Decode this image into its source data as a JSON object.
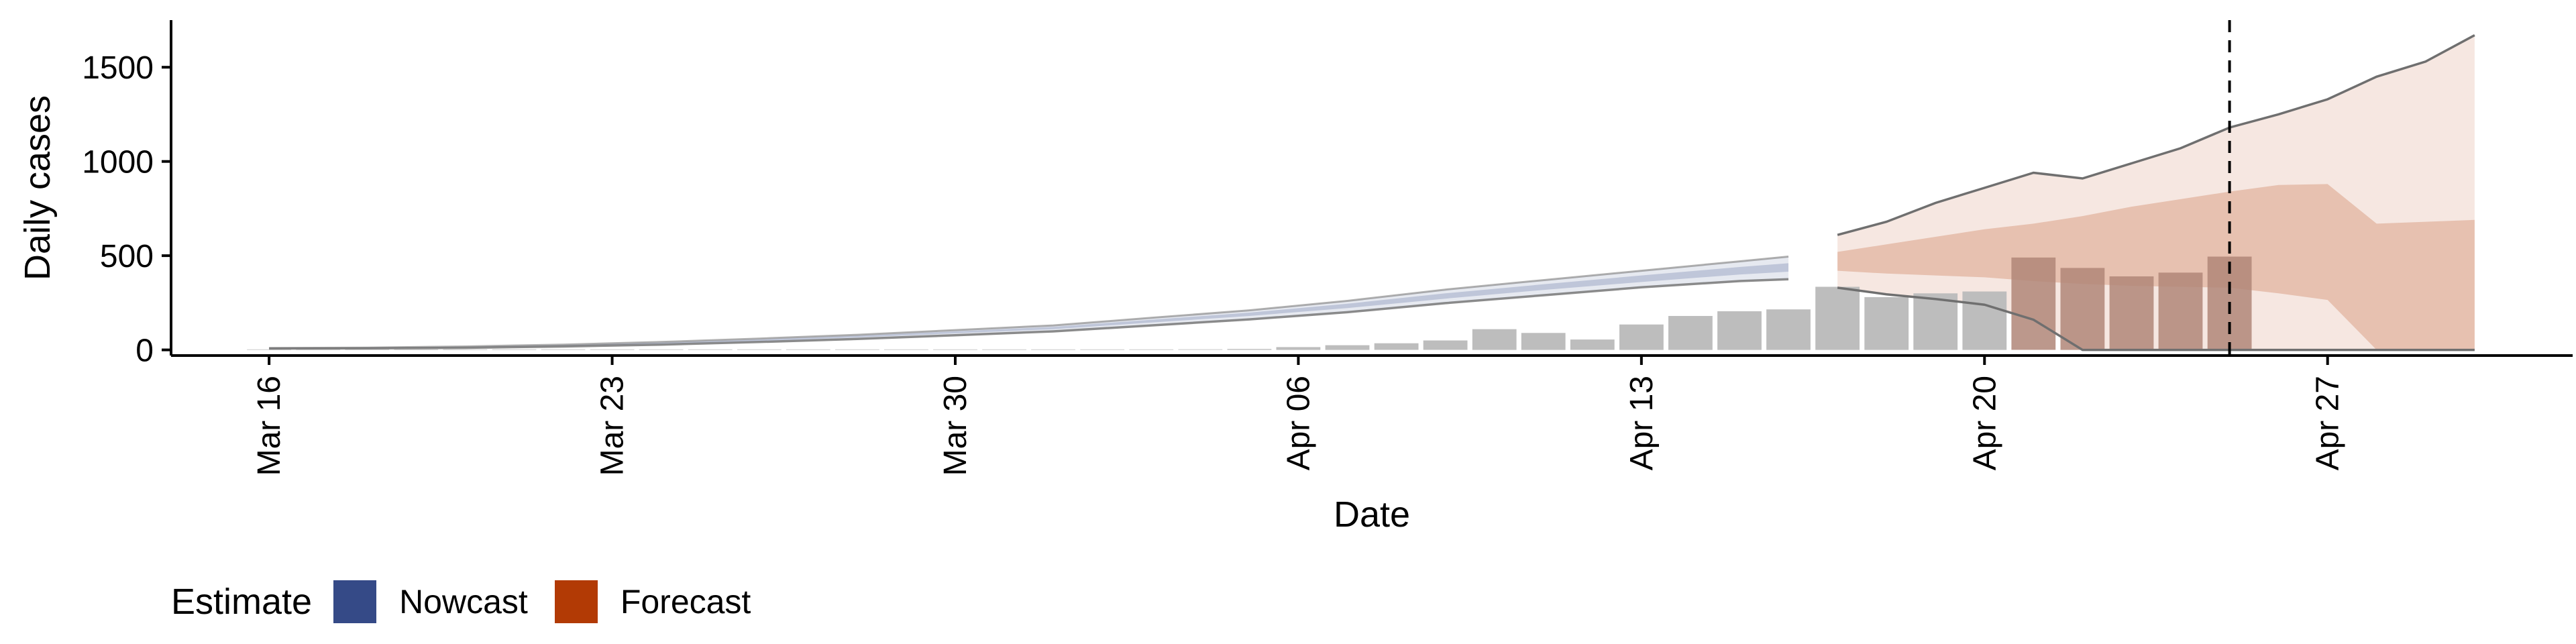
{
  "chart_data": {
    "type": "bar",
    "xlabel": "Date",
    "ylabel": "Daily cases",
    "x_axis": {
      "start": "2020-03-14",
      "end": "2020-05-02",
      "tick_dates": [
        "2020-03-16",
        "2020-03-23",
        "2020-03-30",
        "2020-04-06",
        "2020-04-13",
        "2020-04-20",
        "2020-04-27"
      ],
      "tick_labels": [
        "Mar 16",
        "Mar 23",
        "Mar 30",
        "Apr 06",
        "Apr 13",
        "Apr 20",
        "Apr 27"
      ]
    },
    "y_axis": {
      "ylim": [
        -30,
        1750
      ],
      "ticks": [
        0,
        500,
        1000,
        1500
      ],
      "tick_labels": [
        "0",
        "500",
        "1000",
        "1500"
      ]
    },
    "grid": false,
    "legend": {
      "position": "bottom-left",
      "title": "Estimate",
      "entries": [
        {
          "name": "Nowcast",
          "color": "#354A87"
        },
        {
          "name": "Forecast",
          "color": "#B23A05"
        }
      ]
    },
    "bars": {
      "color": "#bdbdbd",
      "highlight_color": "#b08678",
      "values": [
        {
          "date": "2020-03-16",
          "value": 0
        },
        {
          "date": "2020-03-17",
          "value": 0
        },
        {
          "date": "2020-03-18",
          "value": 0
        },
        {
          "date": "2020-03-19",
          "value": 0
        },
        {
          "date": "2020-03-20",
          "value": 0
        },
        {
          "date": "2020-03-21",
          "value": 0
        },
        {
          "date": "2020-03-22",
          "value": 0
        },
        {
          "date": "2020-03-23",
          "value": 1
        },
        {
          "date": "2020-03-24",
          "value": 0
        },
        {
          "date": "2020-03-25",
          "value": 2
        },
        {
          "date": "2020-03-26",
          "value": 0
        },
        {
          "date": "2020-03-27",
          "value": 0
        },
        {
          "date": "2020-03-28",
          "value": 2
        },
        {
          "date": "2020-03-29",
          "value": 0
        },
        {
          "date": "2020-03-30",
          "value": 0
        },
        {
          "date": "2020-03-31",
          "value": 0
        },
        {
          "date": "2020-04-01",
          "value": 1
        },
        {
          "date": "2020-04-02",
          "value": 2
        },
        {
          "date": "2020-04-03",
          "value": 2
        },
        {
          "date": "2020-04-04",
          "value": 3
        },
        {
          "date": "2020-04-05",
          "value": 5
        },
        {
          "date": "2020-04-06",
          "value": 15
        },
        {
          "date": "2020-04-07",
          "value": 25
        },
        {
          "date": "2020-04-08",
          "value": 35
        },
        {
          "date": "2020-04-09",
          "value": 50
        },
        {
          "date": "2020-04-10",
          "value": 110
        },
        {
          "date": "2020-04-11",
          "value": 90
        },
        {
          "date": "2020-04-12",
          "value": 55
        },
        {
          "date": "2020-04-13",
          "value": 135
        },
        {
          "date": "2020-04-14",
          "value": 180
        },
        {
          "date": "2020-04-15",
          "value": 205
        },
        {
          "date": "2020-04-16",
          "value": 215
        },
        {
          "date": "2020-04-17",
          "value": 335
        },
        {
          "date": "2020-04-18",
          "value": 280
        },
        {
          "date": "2020-04-19",
          "value": 300
        },
        {
          "date": "2020-04-20",
          "value": 310
        },
        {
          "date": "2020-04-21",
          "value": 490,
          "highlight": true
        },
        {
          "date": "2020-04-22",
          "value": 435,
          "highlight": true
        },
        {
          "date": "2020-04-23",
          "value": 390,
          "highlight": true
        },
        {
          "date": "2020-04-24",
          "value": 410,
          "highlight": true
        },
        {
          "date": "2020-04-25",
          "value": 495,
          "highlight": true
        }
      ]
    },
    "nowcast": {
      "color": "#354A87",
      "dates": [
        "2020-03-16",
        "2020-03-18",
        "2020-03-20",
        "2020-03-22",
        "2020-03-24",
        "2020-03-26",
        "2020-03-28",
        "2020-03-30",
        "2020-04-01",
        "2020-04-03",
        "2020-04-05",
        "2020-04-07",
        "2020-04-09",
        "2020-04-11",
        "2020-04-13",
        "2020-04-15",
        "2020-04-16"
      ],
      "outer_upper": [
        10,
        12,
        18,
        28,
        42,
        60,
        80,
        105,
        130,
        170,
        210,
        260,
        320,
        370,
        420,
        470,
        495
      ],
      "upper": [
        9,
        11,
        16,
        25,
        38,
        55,
        75,
        98,
        122,
        160,
        198,
        245,
        300,
        348,
        395,
        440,
        460
      ],
      "lower": [
        8,
        9,
        13,
        21,
        32,
        47,
        66,
        88,
        110,
        145,
        180,
        222,
        272,
        318,
        360,
        400,
        415
      ],
      "outer_lower": [
        7,
        8,
        11,
        18,
        28,
        42,
        58,
        78,
        98,
        130,
        162,
        200,
        248,
        290,
        332,
        365,
        375
      ]
    },
    "forecast": {
      "color": "#B23A05",
      "dates": [
        "2020-04-17",
        "2020-04-18",
        "2020-04-19",
        "2020-04-20",
        "2020-04-21",
        "2020-04-22",
        "2020-04-23",
        "2020-04-24",
        "2020-04-25",
        "2020-04-26",
        "2020-04-27",
        "2020-04-28",
        "2020-04-29",
        "2020-04-30"
      ],
      "outer_upper": [
        610,
        680,
        780,
        860,
        940,
        910,
        990,
        1070,
        1180,
        1250,
        1330,
        1450,
        1530,
        1670
      ],
      "upper": [
        520,
        560,
        600,
        640,
        670,
        710,
        760,
        800,
        840,
        875,
        880,
        670,
        680,
        690
      ],
      "lower": [
        420,
        405,
        395,
        385,
        365,
        350,
        340,
        335,
        330,
        300,
        265,
        0,
        0,
        0
      ],
      "outer_lower": [
        330,
        295,
        270,
        240,
        160,
        0,
        0,
        0,
        0,
        0,
        0,
        0,
        0,
        0
      ]
    },
    "reference_line": {
      "date": "2020-04-25",
      "style": "dashed"
    }
  }
}
